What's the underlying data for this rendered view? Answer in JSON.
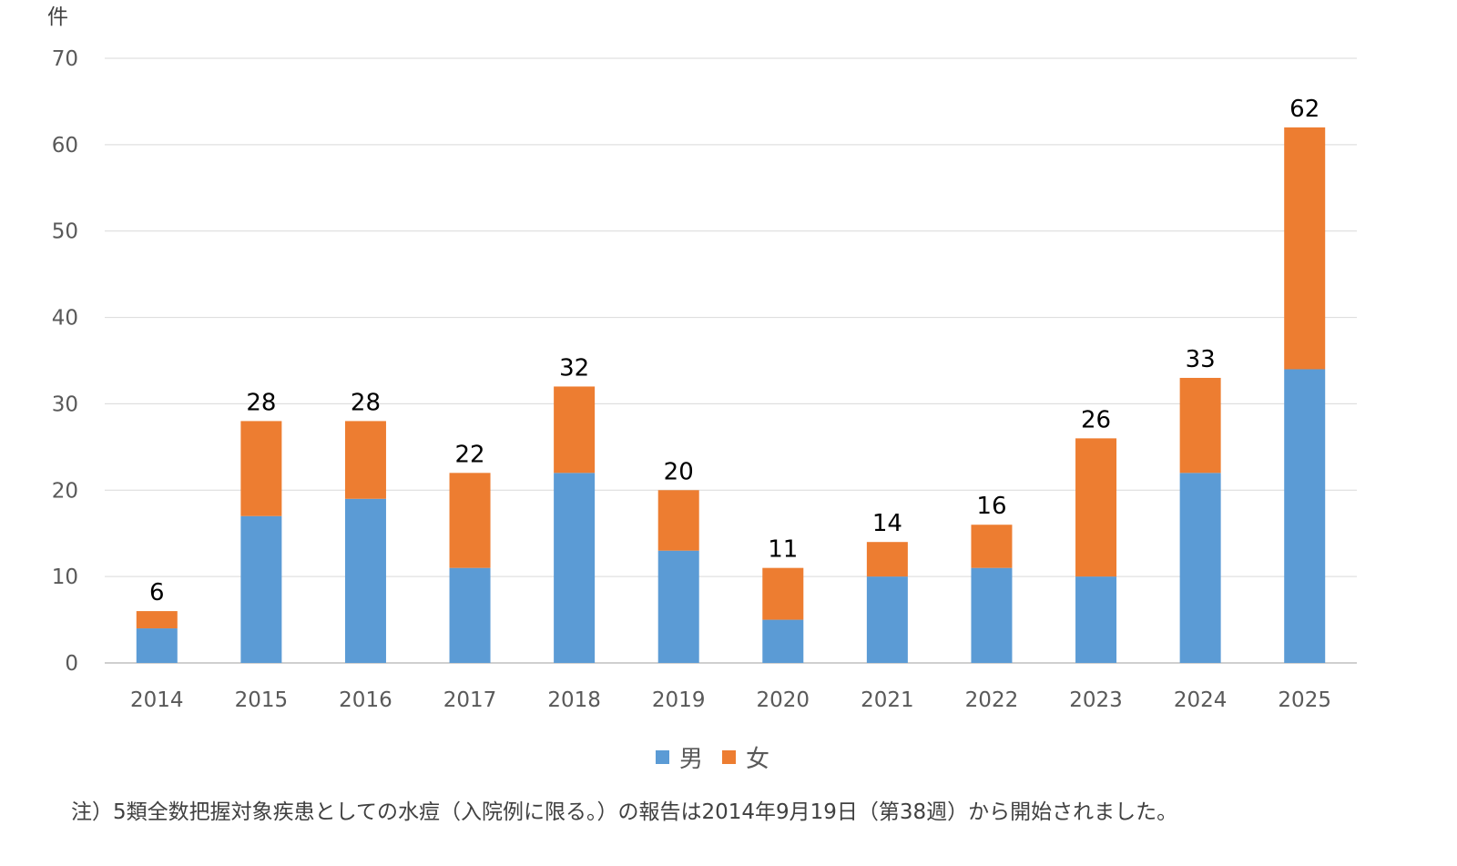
{
  "chart_data": {
    "type": "bar",
    "stacked": true,
    "ylabel": "件",
    "ylim": [
      0,
      70
    ],
    "yticks": [
      0,
      10,
      20,
      30,
      40,
      50,
      60,
      70
    ],
    "categories": [
      "2014",
      "2015",
      "2016",
      "2017",
      "2018",
      "2019",
      "2020",
      "2021",
      "2022",
      "2023",
      "2024",
      "2025"
    ],
    "series": [
      {
        "name": "男",
        "color": "#5B9BD5",
        "values": [
          4,
          17,
          19,
          11,
          22,
          13,
          5,
          10,
          11,
          10,
          22,
          34
        ]
      },
      {
        "name": "女",
        "color": "#ED7D31",
        "values": [
          2,
          11,
          9,
          11,
          10,
          7,
          6,
          4,
          5,
          16,
          11,
          28
        ]
      }
    ],
    "totals": [
      6,
      28,
      28,
      22,
      32,
      20,
      11,
      14,
      16,
      26,
      33,
      62
    ],
    "legend_position": "bottom",
    "grid": true
  },
  "note": "注）5類全数把握対象疾患としての水痘（入院例に限る。）の報告は2014年9月19日（第38週）から開始されました。"
}
